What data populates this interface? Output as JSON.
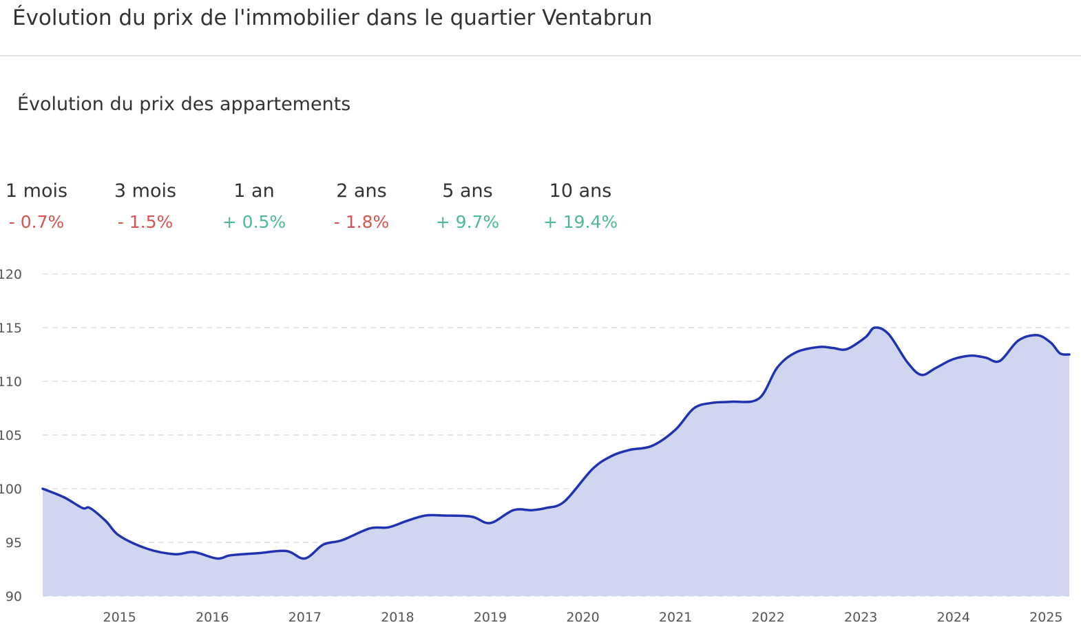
{
  "header": {
    "title": "Évolution du prix de l'immobilier dans le quartier Ventabrun"
  },
  "stats": [
    {
      "label": "1 mois",
      "value": "- 0.7%",
      "trend": "negative"
    },
    {
      "label": "3 mois",
      "value": "- 1.5%",
      "trend": "negative"
    },
    {
      "label": "1 an",
      "value": "+ 0.5%",
      "trend": "positive"
    },
    {
      "label": "2 ans",
      "value": "- 1.8%",
      "trend": "negative"
    },
    {
      "label": "5 ans",
      "value": "+ 9.7%",
      "trend": "positive"
    },
    {
      "label": "10 ans",
      "value": "+ 19.4%",
      "trend": "positive"
    }
  ],
  "colors": {
    "line": "#1f33b0",
    "area": "#d0d5f0",
    "grid": "#dddddd",
    "negative": "#d9534f",
    "positive": "#4dbb8f"
  },
  "chart_data": {
    "type": "area",
    "title": "Évolution du prix des appartements",
    "xlabel": "",
    "ylabel": "",
    "ylim": [
      90,
      120
    ],
    "yticks": [
      90,
      95,
      100,
      105,
      110,
      115,
      120
    ],
    "xlim": [
      2014.17,
      2025.25
    ],
    "xticks": [
      "2015",
      "2016",
      "2017",
      "2018",
      "2019",
      "2020",
      "2021",
      "2022",
      "2023",
      "2024",
      "2025"
    ],
    "grid": true,
    "series": [
      {
        "name": "",
        "x": [
          2014.17,
          2014.4,
          2014.6,
          2014.68,
          2014.85,
          2015.0,
          2015.3,
          2015.6,
          2015.8,
          2016.05,
          2016.2,
          2016.5,
          2016.8,
          2017.0,
          2017.2,
          2017.4,
          2017.7,
          2017.9,
          2018.1,
          2018.3,
          2018.5,
          2018.8,
          2019.0,
          2019.25,
          2019.45,
          2019.6,
          2019.8,
          2020.1,
          2020.3,
          2020.5,
          2020.75,
          2021.0,
          2021.2,
          2021.4,
          2021.6,
          2021.9,
          2022.1,
          2022.3,
          2022.55,
          2022.7,
          2022.85,
          2023.05,
          2023.15,
          2023.3,
          2023.5,
          2023.65,
          2023.8,
          2023.95,
          2024.05,
          2024.2,
          2024.35,
          2024.5,
          2024.7,
          2024.9,
          2025.05,
          2025.15,
          2025.25
        ],
        "y": [
          100.0,
          99.2,
          98.2,
          98.2,
          97.0,
          95.6,
          94.4,
          93.9,
          94.1,
          93.5,
          93.8,
          94.0,
          94.2,
          93.5,
          94.8,
          95.2,
          96.3,
          96.4,
          97.0,
          97.5,
          97.5,
          97.4,
          96.8,
          98.0,
          98.0,
          98.2,
          98.8,
          101.8,
          103.0,
          103.6,
          104.0,
          105.5,
          107.5,
          108.0,
          108.1,
          108.4,
          111.3,
          112.7,
          113.2,
          113.1,
          113.0,
          114.1,
          115.0,
          114.4,
          111.8,
          110.6,
          111.2,
          111.9,
          112.2,
          112.4,
          112.2,
          111.9,
          113.8,
          114.3,
          113.6,
          112.6,
          112.5
        ]
      }
    ]
  }
}
